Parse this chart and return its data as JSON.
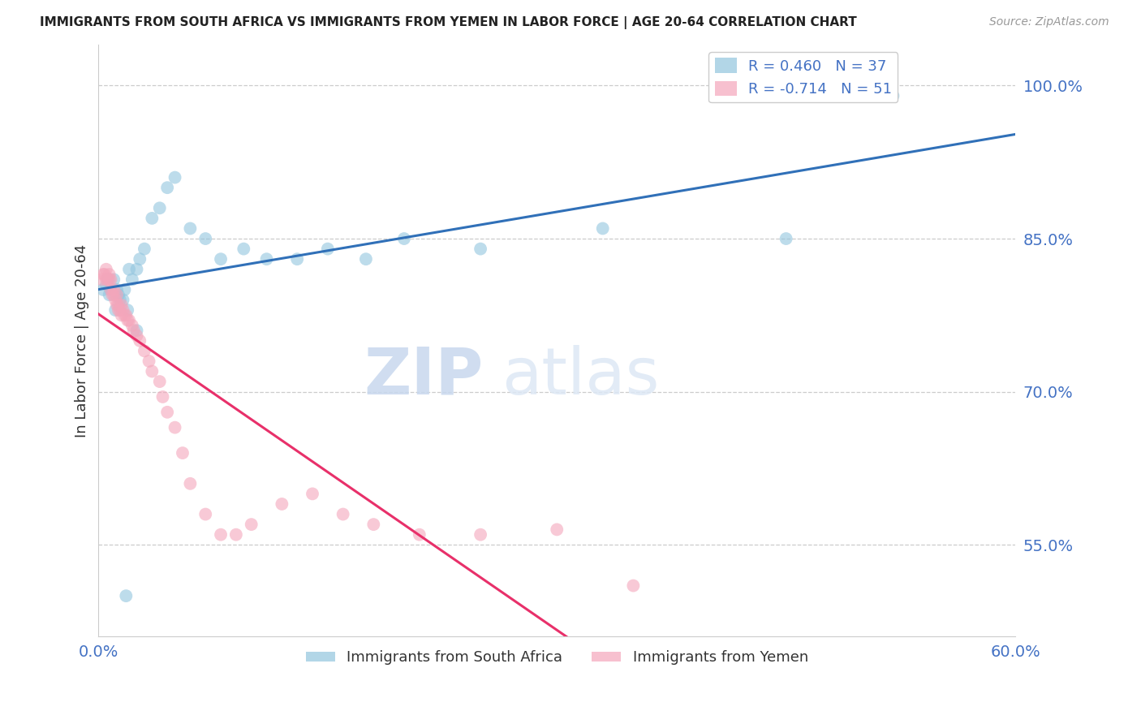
{
  "title": "IMMIGRANTS FROM SOUTH AFRICA VS IMMIGRANTS FROM YEMEN IN LABOR FORCE | AGE 20-64 CORRELATION CHART",
  "source": "Source: ZipAtlas.com",
  "ylabel": "In Labor Force | Age 20-64",
  "xlim": [
    0.0,
    0.6
  ],
  "ylim": [
    0.46,
    1.04
  ],
  "yticks": [
    0.55,
    0.7,
    0.85,
    1.0
  ],
  "ytick_labels": [
    "55.0%",
    "70.0%",
    "85.0%",
    "100.0%"
  ],
  "xticks": [
    0.0,
    0.1,
    0.2,
    0.3,
    0.4,
    0.5,
    0.6
  ],
  "xtick_labels": [
    "0.0%",
    "",
    "",
    "",
    "",
    "",
    "60.0%"
  ],
  "blue_R": 0.46,
  "blue_N": 37,
  "pink_R": -0.714,
  "pink_N": 51,
  "blue_color": "#92c5de",
  "pink_color": "#f4a6bb",
  "blue_line_color": "#3070b8",
  "pink_line_color": "#e8306a",
  "watermark_zip": "ZIP",
  "watermark_atlas": "atlas",
  "axis_color": "#4472c4",
  "grid_color": "#cccccc",
  "blue_scatter_x": [
    0.003,
    0.005,
    0.006,
    0.007,
    0.008,
    0.01,
    0.011,
    0.012,
    0.013,
    0.014,
    0.016,
    0.017,
    0.019,
    0.02,
    0.022,
    0.025,
    0.027,
    0.03,
    0.035,
    0.04,
    0.045,
    0.05,
    0.06,
    0.07,
    0.08,
    0.095,
    0.11,
    0.13,
    0.15,
    0.175,
    0.2,
    0.25,
    0.33,
    0.45,
    0.52,
    0.025,
    0.018
  ],
  "blue_scatter_y": [
    0.8,
    0.805,
    0.81,
    0.795,
    0.8,
    0.81,
    0.78,
    0.8,
    0.795,
    0.79,
    0.79,
    0.8,
    0.78,
    0.82,
    0.81,
    0.82,
    0.83,
    0.84,
    0.87,
    0.88,
    0.9,
    0.91,
    0.86,
    0.85,
    0.83,
    0.84,
    0.83,
    0.83,
    0.84,
    0.83,
    0.85,
    0.84,
    0.86,
    0.85,
    0.99,
    0.76,
    0.5
  ],
  "pink_scatter_x": [
    0.002,
    0.003,
    0.004,
    0.005,
    0.005,
    0.006,
    0.007,
    0.007,
    0.008,
    0.008,
    0.009,
    0.01,
    0.01,
    0.011,
    0.012,
    0.012,
    0.013,
    0.013,
    0.014,
    0.015,
    0.015,
    0.016,
    0.017,
    0.018,
    0.019,
    0.02,
    0.022,
    0.023,
    0.025,
    0.027,
    0.03,
    0.033,
    0.035,
    0.04,
    0.042,
    0.045,
    0.05,
    0.055,
    0.06,
    0.07,
    0.08,
    0.09,
    0.1,
    0.12,
    0.14,
    0.16,
    0.18,
    0.21,
    0.25,
    0.3,
    0.35
  ],
  "pink_scatter_y": [
    0.81,
    0.815,
    0.815,
    0.81,
    0.82,
    0.81,
    0.815,
    0.81,
    0.81,
    0.8,
    0.795,
    0.795,
    0.8,
    0.79,
    0.785,
    0.795,
    0.78,
    0.785,
    0.78,
    0.775,
    0.785,
    0.78,
    0.775,
    0.775,
    0.77,
    0.77,
    0.765,
    0.76,
    0.755,
    0.75,
    0.74,
    0.73,
    0.72,
    0.71,
    0.695,
    0.68,
    0.665,
    0.64,
    0.61,
    0.58,
    0.56,
    0.56,
    0.57,
    0.59,
    0.6,
    0.58,
    0.57,
    0.56,
    0.56,
    0.565,
    0.51
  ]
}
